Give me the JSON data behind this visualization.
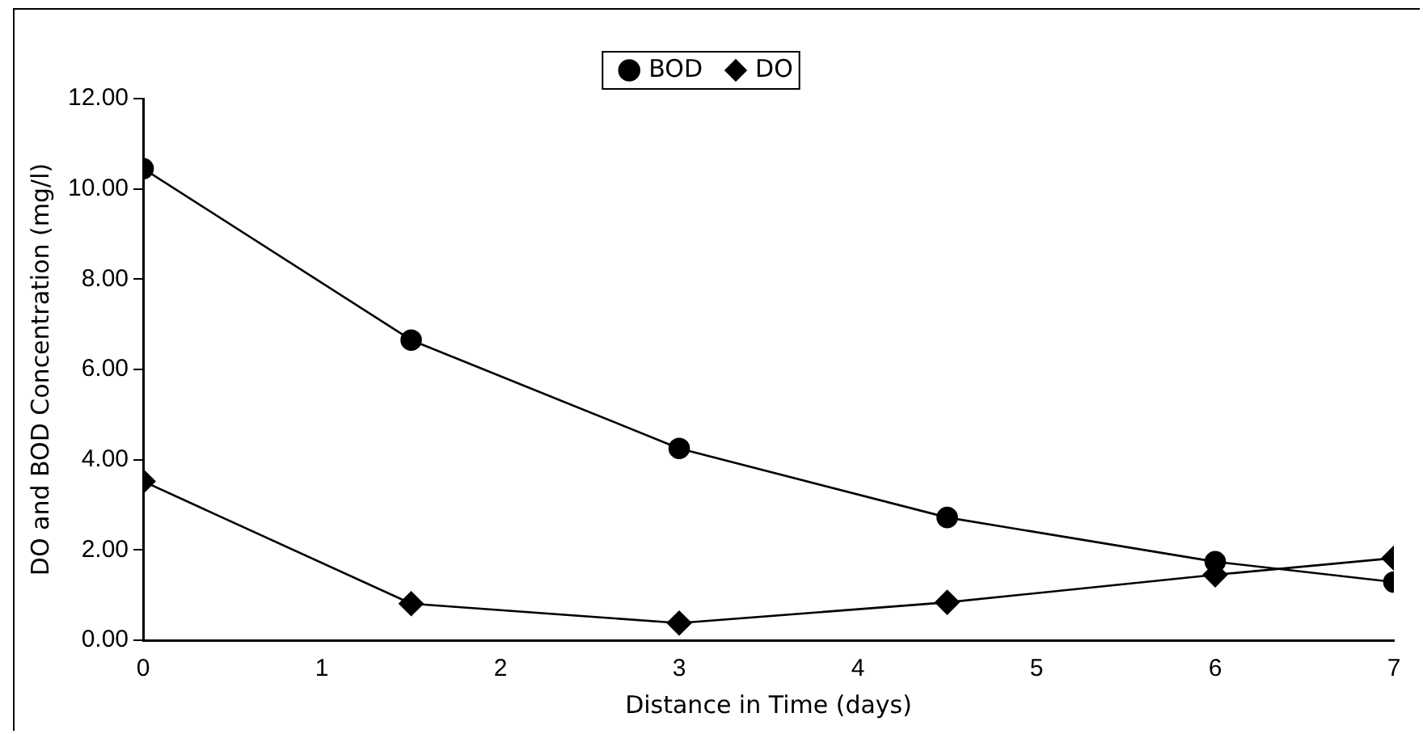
{
  "chart_data": {
    "type": "line",
    "xlabel": "Distance in Time (days)",
    "ylabel": "DO and BOD Concentration (mg/l)",
    "series": [
      {
        "name": "BOD",
        "color": "#000000",
        "marker": "circle",
        "x": [
          0,
          1.5,
          3,
          4.5,
          6,
          7
        ],
        "values": [
          10.45,
          6.65,
          4.25,
          2.72,
          1.74,
          1.29
        ]
      },
      {
        "name": "DO",
        "color": "#000000",
        "marker": "diamond",
        "x": [
          0,
          1.5,
          3,
          4.5,
          6,
          7
        ],
        "values": [
          3.52,
          0.81,
          0.38,
          0.84,
          1.45,
          1.82
        ]
      }
    ],
    "xlim": [
      0,
      7
    ],
    "xticks": [
      0,
      1,
      2,
      3,
      4,
      5,
      6,
      7
    ],
    "ylim": [
      0,
      12
    ],
    "yticks": [
      {
        "value": 0,
        "label": "0.00"
      },
      {
        "value": 2,
        "label": "2.00"
      },
      {
        "value": 4,
        "label": "4.00"
      },
      {
        "value": 6,
        "label": "6.00"
      },
      {
        "value": 8,
        "label": "8.00"
      },
      {
        "value": 10,
        "label": "10.00"
      },
      {
        "value": 12,
        "label": "12.00"
      }
    ],
    "grid": false,
    "legend": "top",
    "line_style": "solid"
  }
}
